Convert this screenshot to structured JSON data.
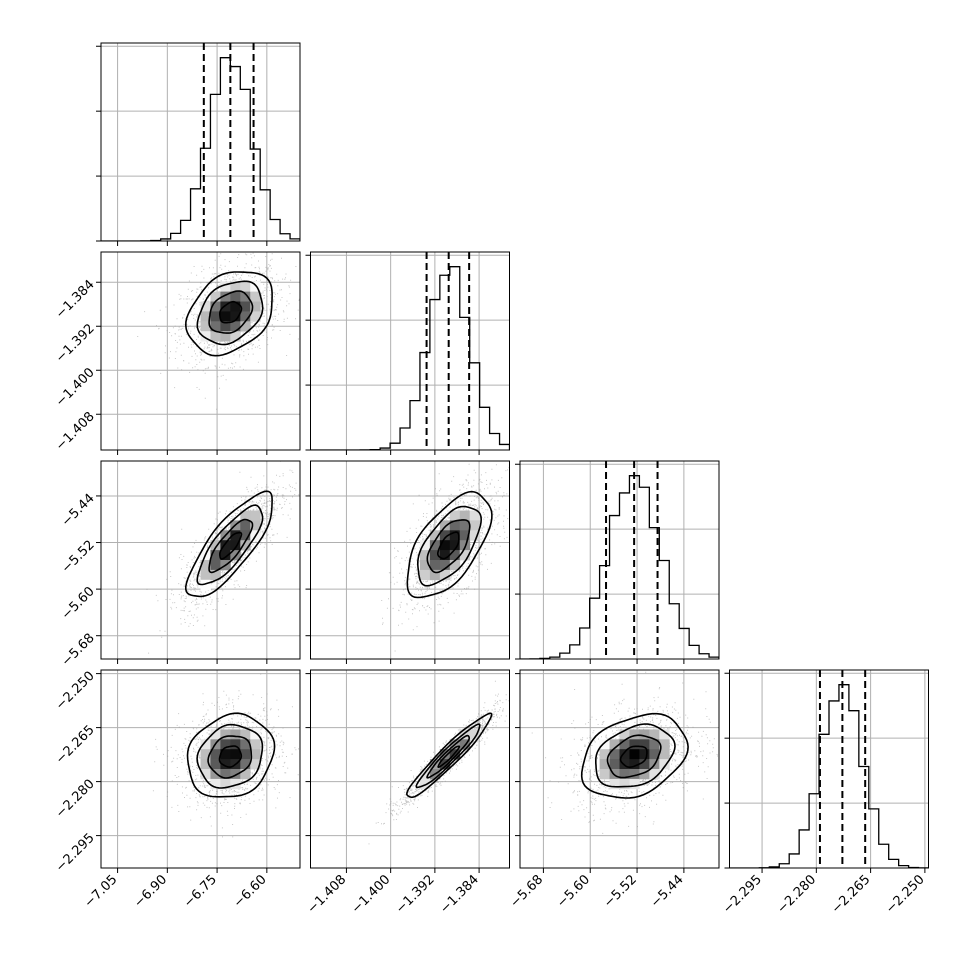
{
  "chart_data": {
    "type": "corner",
    "parameters": 4,
    "ranges": [
      [
        -7.1,
        -6.5
      ],
      [
        -1.4145,
        -1.3785
      ],
      [
        -5.72,
        -5.38
      ],
      [
        -2.304,
        -2.249
      ]
    ],
    "ticks": [
      [
        -7.05,
        -6.9,
        -6.75,
        -6.6
      ],
      [
        -1.408,
        -1.4,
        -1.392,
        -1.384
      ],
      [
        -5.68,
        -5.6,
        -5.52,
        -5.44
      ],
      [
        -2.295,
        -2.28,
        -2.265,
        -2.25
      ]
    ],
    "tick_labels": [
      [
        "−7.05",
        "−6.90",
        "−6.75",
        "−6.60"
      ],
      [
        "−1.408",
        "−1.400",
        "−1.392",
        "−1.384"
      ],
      [
        "−5.68",
        "−5.60",
        "−5.52",
        "−5.44"
      ],
      [
        "−2.295",
        "−2.280",
        "−2.265",
        "−2.250"
      ]
    ],
    "means": [
      -6.71,
      -1.3895,
      -5.525,
      -2.273
    ],
    "stds": [
      0.065,
      0.0038,
      0.045,
      0.0058
    ],
    "correlations": [
      [
        1,
        0.3,
        0.8,
        0.15
      ],
      [
        0.3,
        1,
        0.6,
        0.95
      ],
      [
        0.8,
        0.6,
        1,
        0.3
      ],
      [
        0.15,
        0.95,
        0.3,
        1
      ]
    ],
    "quantiles": [
      [
        -6.79,
        -6.71,
        -6.64
      ],
      [
        -1.3935,
        -1.3895,
        -1.3858
      ],
      [
        -5.573,
        -5.525,
        -5.485
      ],
      [
        -2.279,
        -2.2728,
        -2.2665
      ]
    ],
    "histogram_bins": 20,
    "contour_levels_sigma": [
      0.5,
      1.0,
      1.5,
      2.0
    ],
    "grid": true,
    "colors": {
      "line": "#000000",
      "grid": "#b0b0b0",
      "points": "#9a9a9a",
      "density_dark": "#000000"
    }
  }
}
